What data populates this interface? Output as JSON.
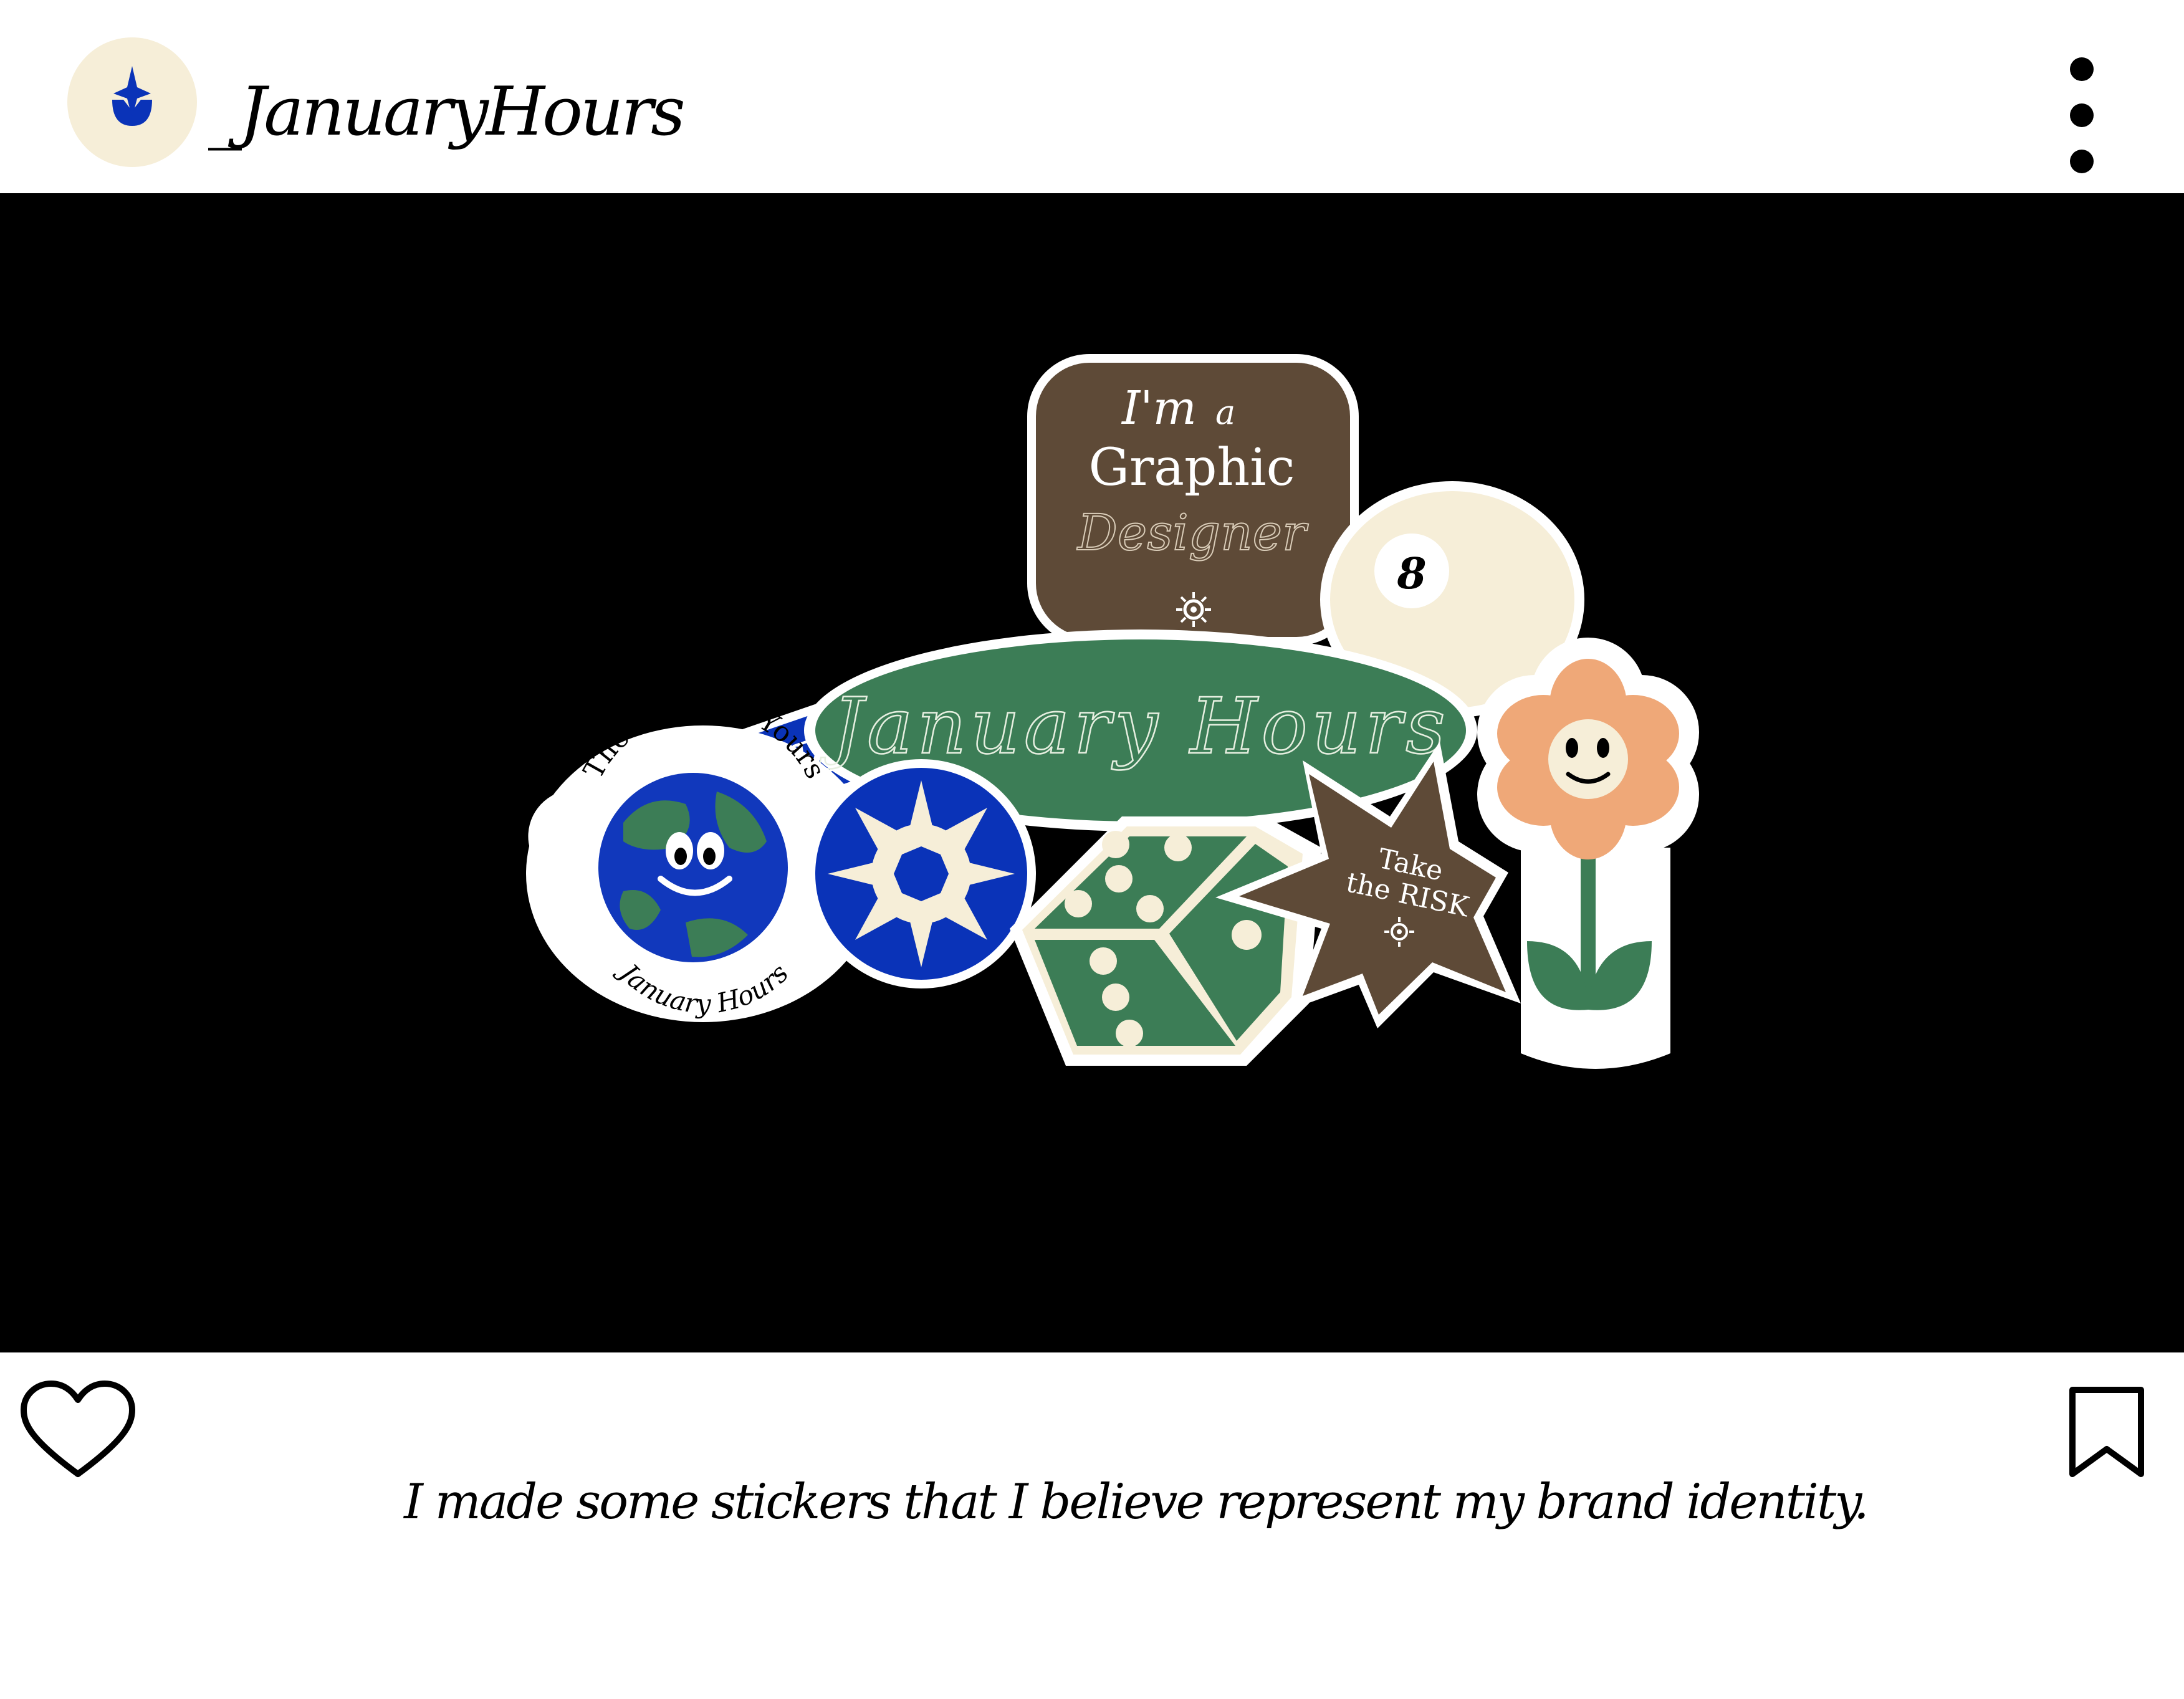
{
  "post": {
    "username": "_JanuaryHours",
    "caption": "I made some stickers that I believe represent my brand identity."
  },
  "stickers": {
    "search_bar": {
      "text": "_JanuaryHours"
    },
    "graphic_designer": {
      "line1": "I'm",
      "line1_small": "a",
      "line2": "Graphic",
      "line3": "Designer"
    },
    "eight_ball": {
      "number": "8"
    },
    "oval": {
      "text": "January Hours"
    },
    "world": {
      "top": "The World Is Yours",
      "bottom": "January Hours"
    },
    "star": {
      "line1": "Take",
      "line2": "the RISK"
    }
  },
  "icons": {
    "avatar": "star-drop-icon",
    "more": "more-vertical-icon",
    "like": "heart-icon",
    "save": "bookmark-icon",
    "search": "magnifier-icon"
  },
  "colors": {
    "blue": "#0A33B8",
    "brown": "#5E4A37",
    "green": "#3C7D56",
    "cream": "#F6EED8",
    "peach": "#EFA878",
    "background": "#000000"
  }
}
